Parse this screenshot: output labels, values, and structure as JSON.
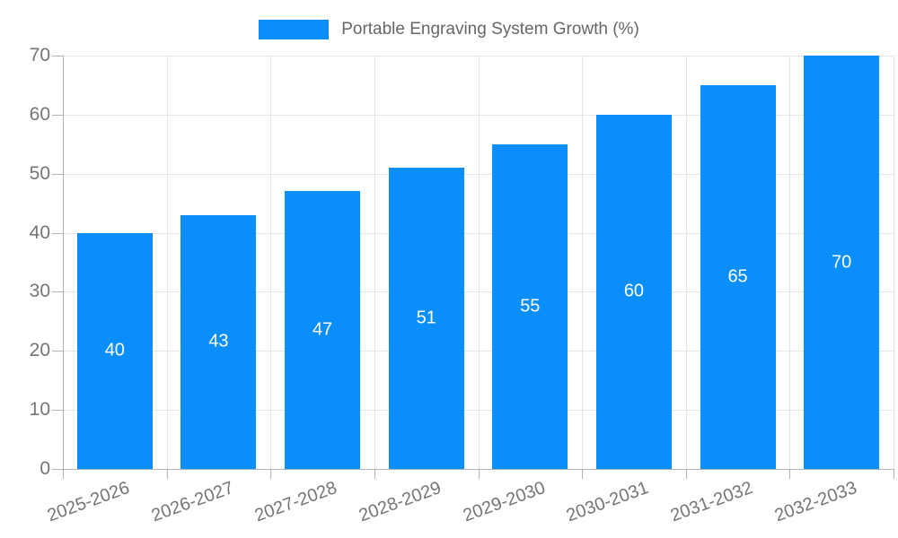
{
  "chart_data": {
    "type": "bar",
    "title": "Portable Engraving System Growth (%)",
    "legend_label": "Portable Engraving System Growth (%)",
    "legend_position": "top-center",
    "categories": [
      "2025-2026",
      "2026-2027",
      "2027-2028",
      "2028-2029",
      "2029-2030",
      "2030-2031",
      "2031-2032",
      "2032-2033"
    ],
    "values": [
      40,
      43,
      47,
      51,
      55,
      60,
      65,
      70
    ],
    "xlabel": "",
    "ylabel": "",
    "ylim": [
      0,
      70
    ],
    "yticks": [
      0,
      10,
      20,
      30,
      40,
      50,
      60,
      70
    ],
    "grid": true,
    "value_labels_inside_bars": true,
    "x_label_rotation_deg": -20,
    "colors": {
      "bar": "#0a8ef9",
      "bar_value_text": "#ffffff",
      "grid_line": "#e5e5e5",
      "axis_line": "#b3b3b3",
      "tick_text": "#757575",
      "legend_text": "#666666",
      "background": "#ffffff"
    }
  }
}
